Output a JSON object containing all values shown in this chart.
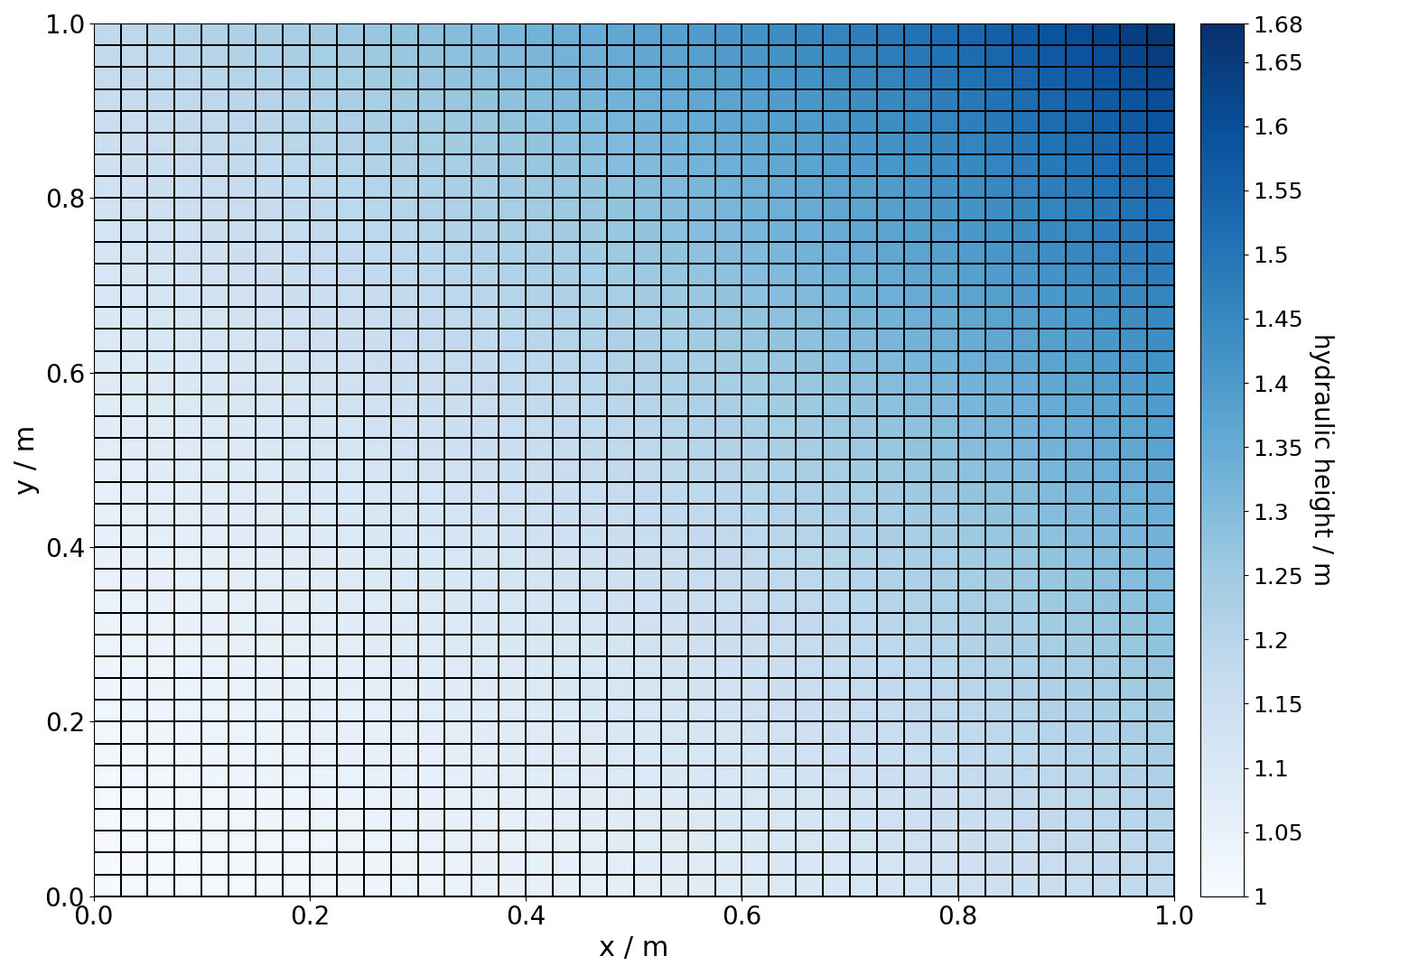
{
  "n_cells": 40,
  "x_min": 0.0,
  "x_max": 1.0,
  "y_min": 0.0,
  "y_max": 1.0,
  "vmin": 1.0,
  "vmax": 1.68,
  "colormap": "Blues",
  "xlabel": "x / m",
  "ylabel": "y / m",
  "colorbar_label": "hydraulic height / m",
  "colorbar_ticks": [
    1,
    1.05,
    1.1,
    1.15,
    1.2,
    1.25,
    1.3,
    1.35,
    1.4,
    1.45,
    1.5,
    1.55,
    1.6,
    1.65,
    1.68
  ],
  "xticks": [
    0.0,
    0.2,
    0.4,
    0.6,
    0.8,
    1.0
  ],
  "yticks": [
    0.0,
    0.2,
    0.4,
    0.6,
    0.8,
    1.0
  ],
  "edge_color": "black",
  "edge_linewidth": 0.3,
  "figsize": [
    15.6,
    10.8
  ],
  "dpi": 100,
  "tick_fontsize": 20,
  "label_fontsize": 22,
  "colorbar_tick_fontsize": 18,
  "colorbar_label_fontsize": 20,
  "colorbar_labelpad": 25,
  "exp_scale": 2.0,
  "base_val": 1.0,
  "range_val": 0.68
}
